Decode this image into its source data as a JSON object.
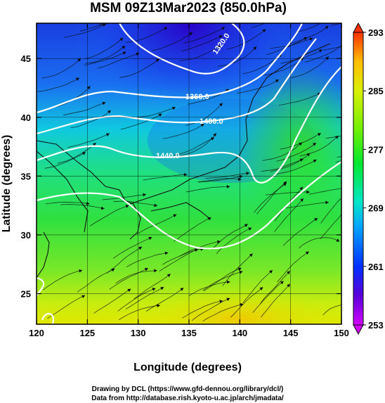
{
  "chart_data": {
    "type": "heatmap",
    "title": "MSM 09Z13Mar2023 (850.0hPa)",
    "xlabel": "Longitude (degrees)",
    "ylabel": "Latitude  (degrees)",
    "xlim": [
      120,
      150
    ],
    "ylim": [
      22.4,
      48
    ],
    "x_ticks": [
      120,
      125,
      130,
      135,
      140,
      145,
      150
    ],
    "y_ticks": [
      25,
      30,
      35,
      40,
      45
    ],
    "colorbar": {
      "range": [
        253,
        293
      ],
      "ticks": [
        253,
        261,
        269,
        277,
        285,
        293
      ],
      "colors": [
        "#d300ff",
        "#3a00d8",
        "#0044ff",
        "#00b8ff",
        "#00e6b0",
        "#00e830",
        "#7cf000",
        "#d8f000",
        "#ffbe00",
        "#ff3000"
      ]
    },
    "contour_labels": [
      "1360.0",
      "1400.0",
      "1440.0",
      "1320.0"
    ],
    "credits": [
      "Drawing by DCL (https://www.gfd-dennou.org/library/dcl/)",
      "Data from http://database.rish.kyoto-u.ac.jp/arch/jmadata/"
    ]
  }
}
